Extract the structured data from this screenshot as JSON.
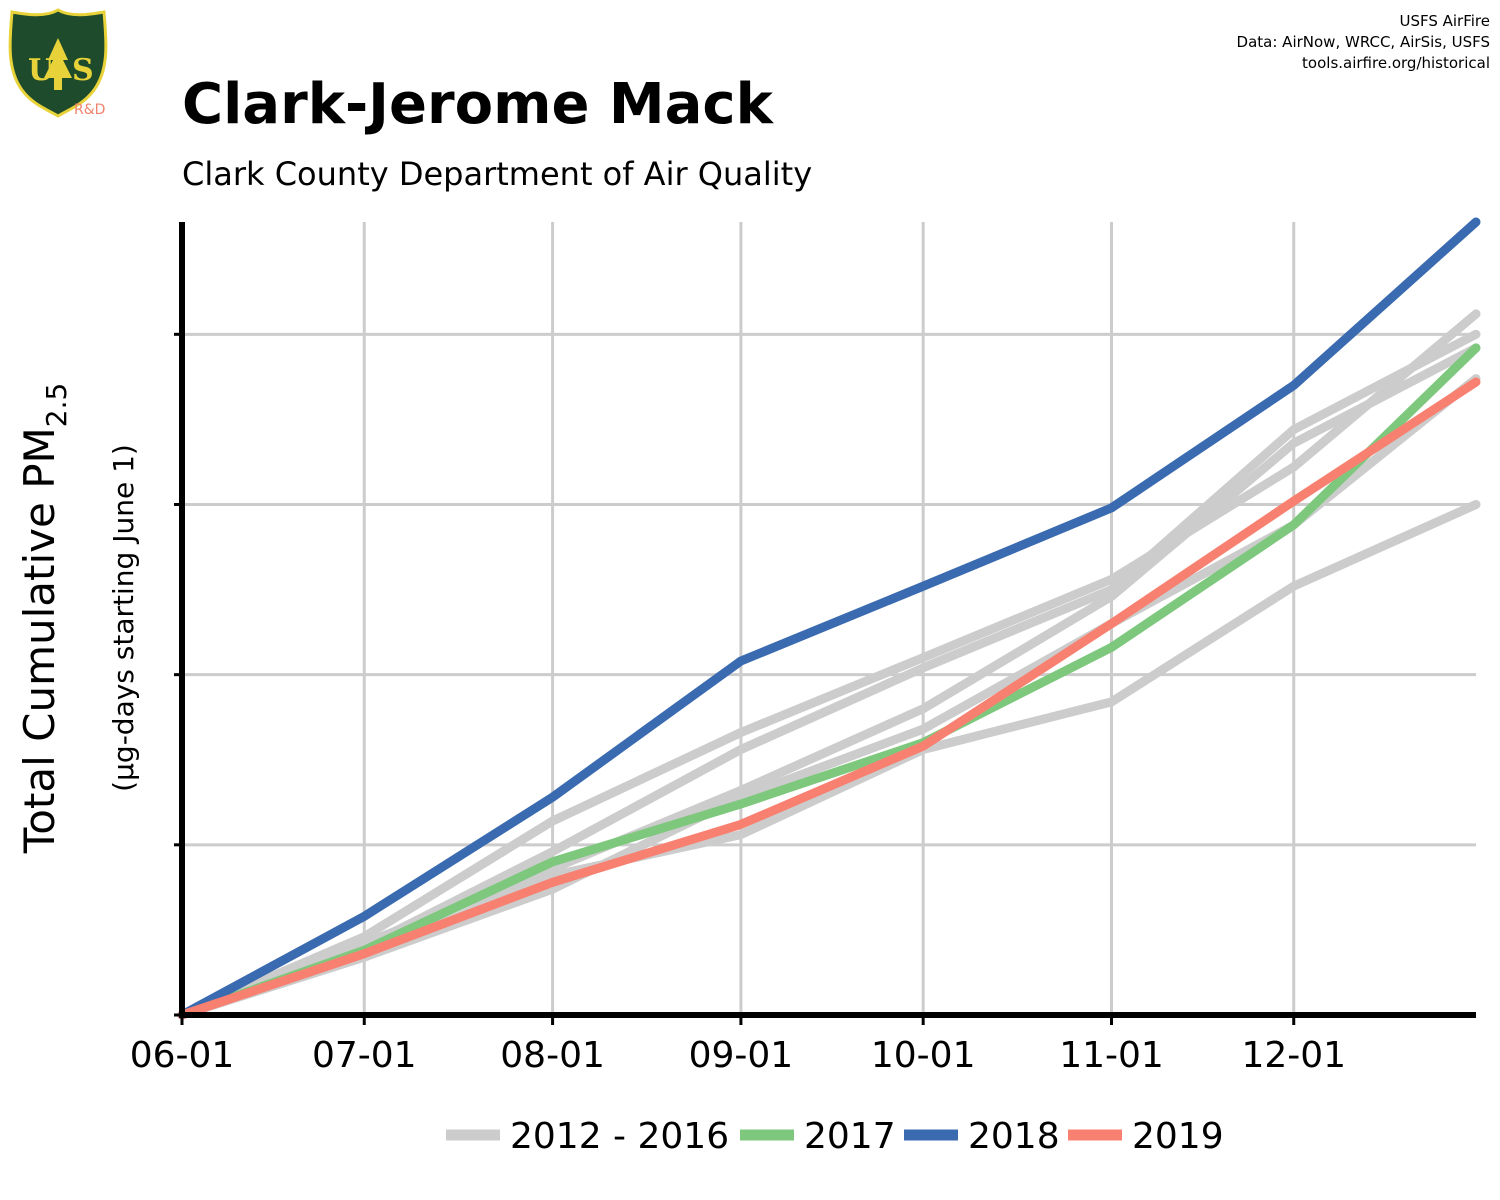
{
  "header": {
    "title": "Clark-Jerome Mack",
    "subtitle": "Clark County Department of Air Quality",
    "credits": [
      "USFS AirFire",
      "Data: AirNow, WRCC, AirSis, USFS",
      "tools.airfire.org/historical"
    ]
  },
  "logo": {
    "name": "usfs-shield-logo",
    "rd_label": "R&D",
    "colors": {
      "shield": "#1d4b2b",
      "border": "#e8d23a",
      "rd": "#f0836c"
    }
  },
  "chart_data": {
    "type": "line",
    "title": "Clark-Jerome Mack",
    "subtitle": "Clark County Department of Air Quality",
    "ylabel_main": "Total Cumulative PM",
    "ylabel_sub": "2.5",
    "ylabel_units": "(µg-days starting June 1)",
    "xlabel": "",
    "x_ticks": [
      "06-01",
      "07-01",
      "08-01",
      "09-01",
      "10-01",
      "11-01",
      "12-01"
    ],
    "x_tick_days": [
      0,
      30,
      61,
      92,
      122,
      153,
      183
    ],
    "xlim": [
      0,
      213
    ],
    "ylim": [
      0,
      2330
    ],
    "y_gridlines": [
      0,
      500,
      1000,
      1500,
      2000
    ],
    "grid": true,
    "legend_position": "bottom",
    "legend": [
      "2012 - 2016",
      "2017",
      "2018",
      "2019"
    ],
    "series": [
      {
        "name": "2012 - 2016",
        "color": "#cccccc",
        "x": [
          0,
          30,
          61,
          92,
          122,
          153,
          183,
          213
        ],
        "y": [
          0,
          230,
          570,
          830,
          1050,
          1280,
          1610,
          2060
        ]
      },
      {
        "name": "2012 - 2016",
        "color": "#cccccc",
        "x": [
          0,
          30,
          61,
          92,
          122,
          153,
          183,
          213
        ],
        "y": [
          0,
          200,
          480,
          780,
          1020,
          1250,
          1720,
          2000
        ]
      },
      {
        "name": "2012 - 2016",
        "color": "#cccccc",
        "x": [
          0,
          30,
          61,
          92,
          122,
          153,
          183,
          213
        ],
        "y": [
          0,
          210,
          430,
          660,
          900,
          1230,
          1680,
          1960
        ]
      },
      {
        "name": "2012 - 2016",
        "color": "#cccccc",
        "x": [
          0,
          30,
          61,
          92,
          122,
          153,
          183,
          213
        ],
        "y": [
          0,
          170,
          370,
          640,
          840,
          1150,
          1440,
          1870
        ]
      },
      {
        "name": "2012 - 2016",
        "color": "#cccccc",
        "x": [
          0,
          30,
          61,
          92,
          122,
          153,
          183,
          213
        ],
        "y": [
          0,
          170,
          410,
          530,
          780,
          920,
          1260,
          1500
        ]
      },
      {
        "name": "2017",
        "color": "#7ec87e",
        "x": [
          0,
          30,
          61,
          92,
          122,
          153,
          183,
          213
        ],
        "y": [
          0,
          190,
          450,
          620,
          800,
          1080,
          1440,
          1960
        ]
      },
      {
        "name": "2018",
        "color": "#3a6ab0",
        "x": [
          0,
          30,
          61,
          92,
          122,
          153,
          183,
          213
        ],
        "y": [
          0,
          290,
          640,
          1040,
          1260,
          1490,
          1850,
          2330
        ]
      },
      {
        "name": "2019",
        "color": "#f88070",
        "x": [
          0,
          30,
          61,
          92,
          122,
          153,
          183,
          213
        ],
        "y": [
          0,
          180,
          390,
          560,
          790,
          1150,
          1510,
          1860
        ]
      }
    ]
  }
}
